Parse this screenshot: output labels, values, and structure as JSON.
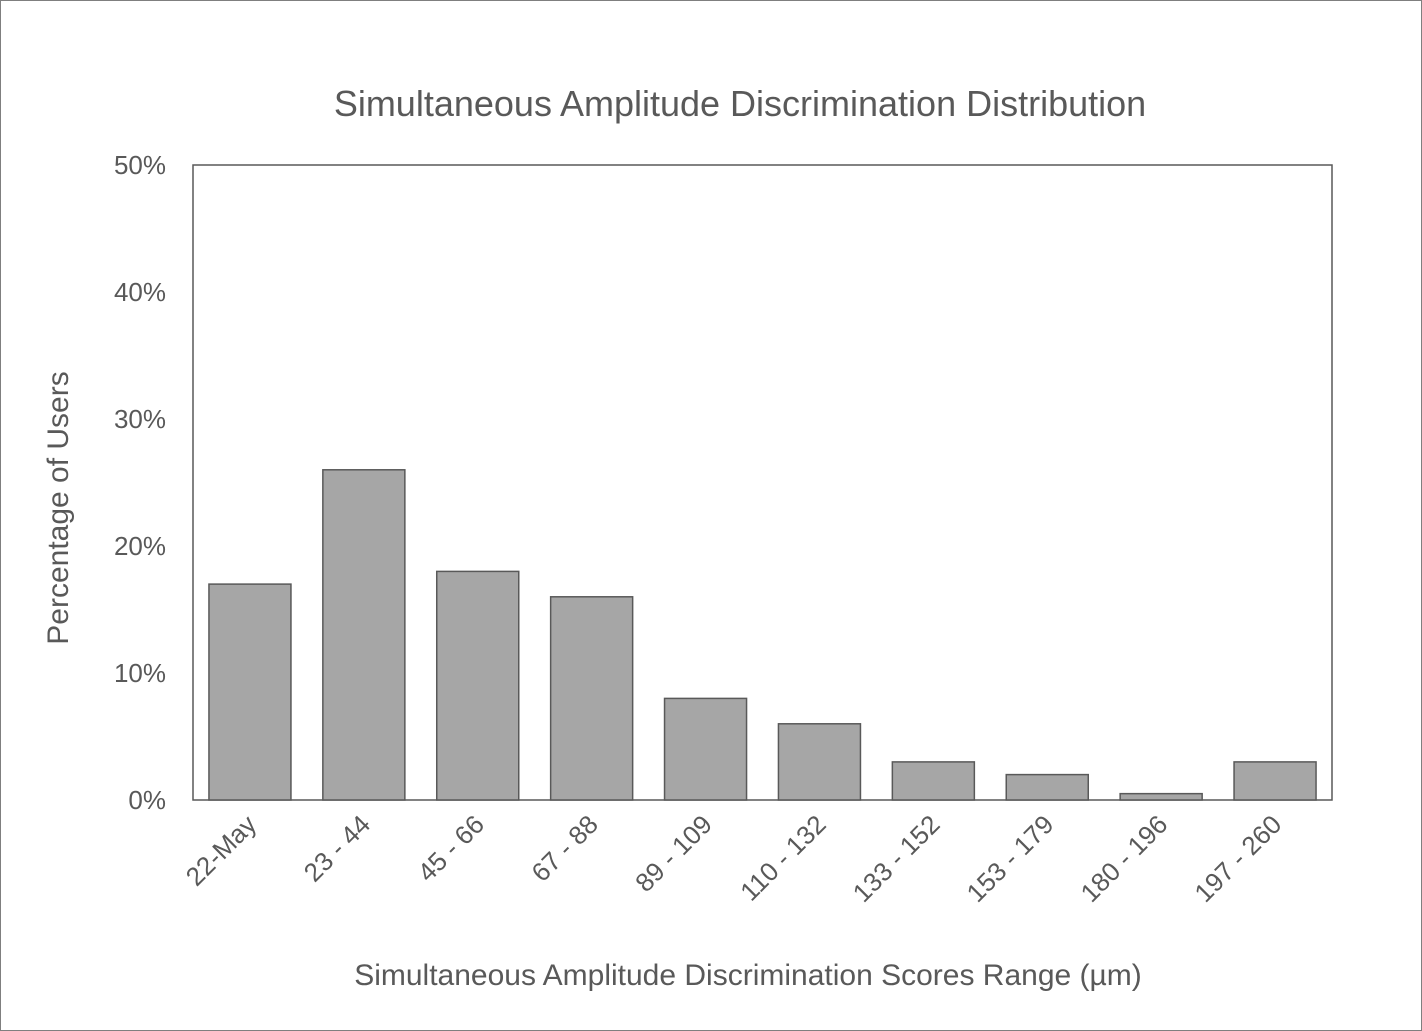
{
  "chart_data": {
    "type": "bar",
    "title": "Simultaneous Amplitude Discrimination Distribution",
    "xlabel": "Simultaneous  Amplitude  Discrimination  Scores Range (µm)",
    "ylabel": "Percentage of Users",
    "categories": [
      "22-May",
      "23 - 44",
      "45 - 66",
      "67 - 88",
      "89 - 109",
      "110 - 132",
      "133 - 152",
      "153 - 179",
      "180 - 196",
      "197 - 260"
    ],
    "values": [
      17,
      26,
      18,
      16,
      8,
      6,
      3,
      2,
      0.5,
      3
    ],
    "yticks": [
      "0%",
      "10%",
      "20%",
      "30%",
      "40%",
      "50%"
    ],
    "ylim": [
      0,
      50
    ],
    "grid": false,
    "legend": "none",
    "colors": {
      "bar_fill": "#a6a6a6",
      "bar_stroke": "#595959",
      "text": "#595959",
      "plot_border": "#595959"
    }
  }
}
